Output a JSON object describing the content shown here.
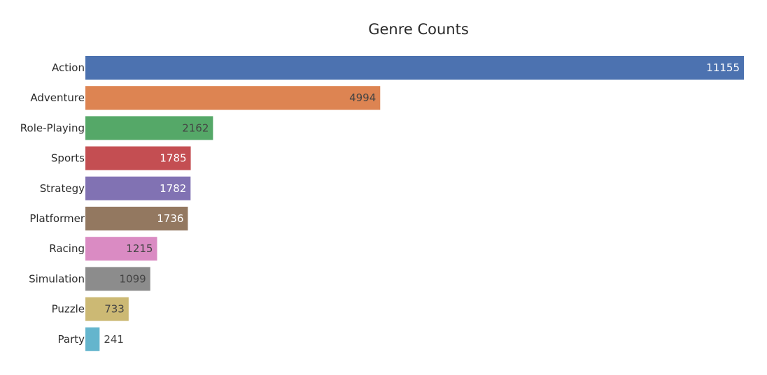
{
  "chart_data": {
    "type": "bar",
    "orientation": "horizontal",
    "title": "Genre Counts",
    "xlabel": "",
    "ylabel": "",
    "categories": [
      "Action",
      "Adventure",
      "Role-Playing",
      "Sports",
      "Strategy",
      "Platformer",
      "Racing",
      "Simulation",
      "Puzzle",
      "Party"
    ],
    "values": [
      11155,
      4994,
      2162,
      1785,
      1782,
      1736,
      1215,
      1099,
      733,
      241
    ],
    "colors": [
      "#4c72b0",
      "#dd8452",
      "#55a868",
      "#c44e52",
      "#8172b3",
      "#937860",
      "#da8bc3",
      "#8c8c8c",
      "#ccb974",
      "#64b5cd"
    ],
    "label_colors": [
      "#ffffff",
      "#444444",
      "#444444",
      "#ffffff",
      "#ffffff",
      "#ffffff",
      "#444444",
      "#444444",
      "#444444",
      "#444444"
    ],
    "xlim": [
      0,
      11155
    ],
    "grid": false,
    "legend": "none"
  }
}
